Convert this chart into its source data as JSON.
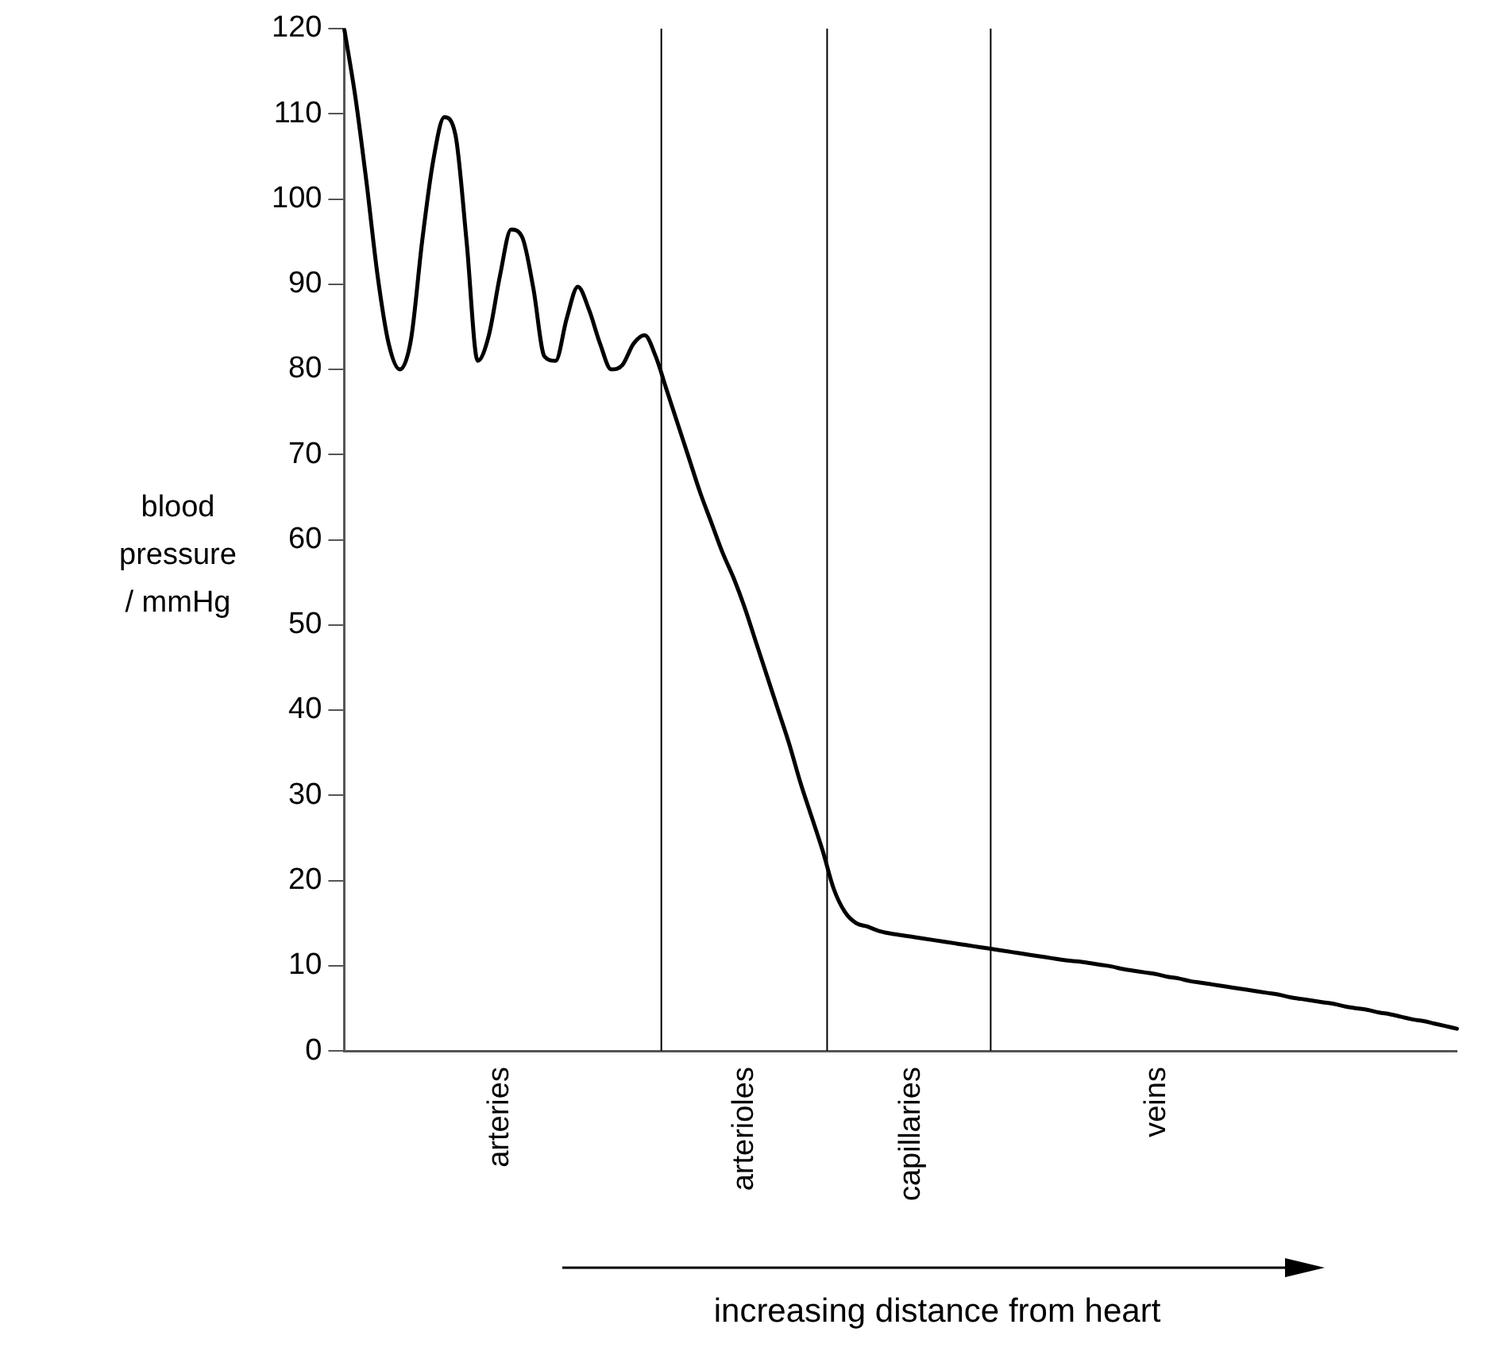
{
  "chart_data": {
    "type": "line",
    "xlabel": "increasing distance from heart",
    "ylabel": "blood pressure / mmHg",
    "categories": [
      null,
      null,
      null,
      null,
      null,
      null,
      null,
      null,
      null,
      null,
      null,
      null,
      null,
      null,
      "arteries",
      null,
      null,
      null,
      null,
      null,
      null,
      null,
      null,
      null,
      null,
      null,
      null,
      null,
      null,
      null,
      null,
      null,
      null,
      null,
      null,
      null,
      "arterioles",
      null,
      null,
      null,
      null,
      null,
      null,
      null,
      null,
      null,
      null,
      null,
      null,
      null,
      null,
      "capillaries",
      null,
      null,
      null,
      null,
      null,
      null,
      null,
      null,
      null,
      null,
      null,
      null,
      null,
      null,
      null,
      null,
      null,
      null,
      null,
      null,
      null,
      "veins",
      null,
      null,
      null,
      null,
      null,
      null,
      null,
      null,
      null,
      null,
      null,
      null,
      null,
      null,
      null,
      null,
      null,
      null,
      null,
      null,
      null,
      null,
      null,
      null,
      null,
      null,
      null
    ],
    "series": [
      {
        "color": "#000000",
        "values": [
          120,
          112,
          102,
          91,
          83,
          80,
          83.5,
          95,
          104.5,
          109.6,
          107.5,
          95,
          81,
          84,
          91,
          96.4,
          95.5,
          89.5,
          81.5,
          81,
          86,
          89.7,
          87,
          83,
          80,
          80.5,
          83,
          84,
          81.5,
          77.5,
          73.5,
          69.5,
          65.5,
          62,
          58.5,
          55.5,
          52,
          48,
          44,
          40,
          36,
          31.5,
          27.5,
          23.5,
          19,
          16.3,
          15,
          14.6,
          14.1,
          13.8,
          13.6,
          13.4,
          13.2,
          13.0,
          12.8,
          12.6,
          12.4,
          12.2,
          12.0,
          11.8,
          11.6,
          11.4,
          11.2,
          11.0,
          10.8,
          10.6,
          10.5,
          10.3,
          10.1,
          9.9,
          9.6,
          9.4,
          9.2,
          9.0,
          8.7,
          8.5,
          8.2,
          8.0,
          7.8,
          7.6,
          7.4,
          7.2,
          7.0,
          6.8,
          6.6,
          6.3,
          6.1,
          5.9,
          5.7,
          5.5,
          5.2,
          5.0,
          4.8,
          4.5,
          4.3,
          4.0,
          3.7,
          3.5,
          3.2,
          2.9,
          2.6
        ]
      }
    ],
    "ylim": [
      0,
      120
    ],
    "yticks": [
      0,
      10,
      20,
      30,
      40,
      50,
      60,
      70,
      80,
      90,
      100,
      110,
      120
    ],
    "grid": false,
    "legend": false,
    "marker": "none",
    "line_style": "solid"
  }
}
